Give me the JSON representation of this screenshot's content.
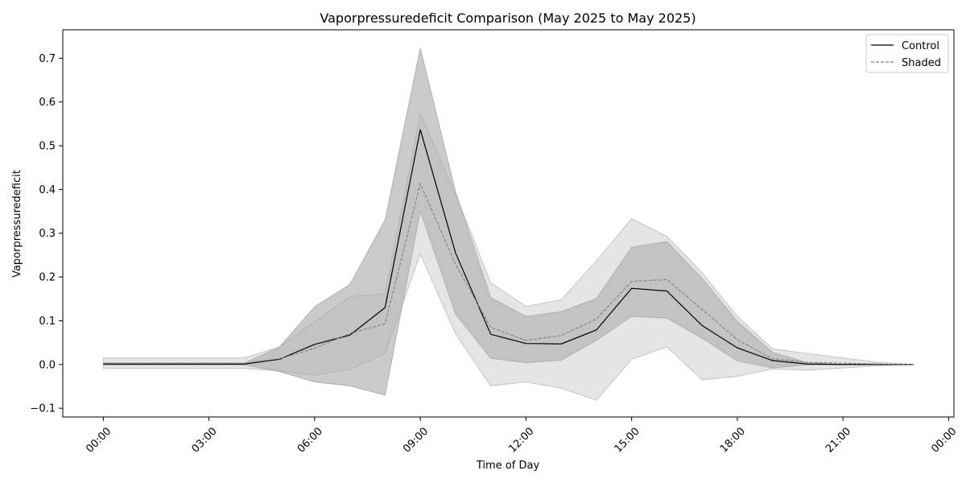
{
  "chart_data": {
    "type": "line",
    "title": "Vaporpressuredeficit Comparison (May 2025 to May 2025)",
    "xlabel": "Time of Day",
    "ylabel": "Vaporpressuredeficit",
    "x_unit": "hour",
    "xlim": [
      -1.15,
      24.15
    ],
    "ylim": [
      -0.12,
      0.765
    ],
    "x_ticks": [
      0,
      3,
      6,
      9,
      12,
      15,
      18,
      21,
      24
    ],
    "x_tick_labels": [
      "00:00",
      "03:00",
      "06:00",
      "09:00",
      "12:00",
      "15:00",
      "18:00",
      "21:00",
      "00:00"
    ],
    "y_ticks": [
      -0.1,
      0.0,
      0.1,
      0.2,
      0.3,
      0.4,
      0.5,
      0.6,
      0.7
    ],
    "y_tick_labels": [
      "−0.1",
      "0.0",
      "0.1",
      "0.2",
      "0.3",
      "0.4",
      "0.5",
      "0.6",
      "0.7"
    ],
    "grid": false,
    "legend_position": "top-right",
    "x": [
      0,
      1,
      2,
      3,
      4,
      5,
      6,
      7,
      8,
      9,
      10,
      11,
      12,
      13,
      14,
      15,
      16,
      17,
      18,
      19,
      20,
      21,
      22,
      23
    ],
    "series": [
      {
        "name": "Control",
        "style": "solid",
        "color": "#000000",
        "values": [
          0.001,
          0.001,
          0.001,
          0.001,
          0.001,
          0.012,
          0.046,
          0.067,
          0.13,
          0.537,
          0.255,
          0.069,
          0.048,
          0.047,
          0.079,
          0.174,
          0.168,
          0.089,
          0.038,
          0.009,
          0.001,
          0.0,
          0.0,
          0.0
        ],
        "band_lower": [
          -0.001,
          -0.001,
          -0.001,
          -0.001,
          -0.001,
          -0.016,
          -0.04,
          -0.049,
          -0.07,
          0.35,
          0.115,
          0.014,
          0.004,
          0.01,
          0.055,
          0.11,
          0.106,
          0.06,
          0.008,
          -0.008,
          -0.001,
          0.0,
          0.0,
          0.0
        ],
        "band_upper": [
          0.003,
          0.003,
          0.003,
          0.003,
          0.003,
          0.04,
          0.132,
          0.183,
          0.33,
          0.723,
          0.395,
          0.153,
          0.11,
          0.121,
          0.151,
          0.268,
          0.281,
          0.197,
          0.099,
          0.028,
          0.004,
          0.0,
          0.0,
          0.0
        ]
      },
      {
        "name": "Shaded",
        "style": "dashed",
        "color": "#808080",
        "values": [
          0.003,
          0.003,
          0.003,
          0.003,
          0.003,
          0.013,
          0.037,
          0.071,
          0.093,
          0.413,
          0.229,
          0.085,
          0.055,
          0.066,
          0.104,
          0.19,
          0.194,
          0.126,
          0.057,
          0.013,
          0.005,
          0.003,
          0.001,
          0.0
        ],
        "band_lower": [
          -0.009,
          -0.009,
          -0.009,
          -0.009,
          -0.009,
          -0.015,
          -0.024,
          -0.012,
          0.025,
          0.252,
          0.07,
          -0.049,
          -0.04,
          -0.054,
          -0.082,
          0.012,
          0.04,
          -0.035,
          -0.027,
          -0.01,
          -0.013,
          -0.008,
          -0.003,
          0.0
        ],
        "band_upper": [
          0.015,
          0.015,
          0.015,
          0.015,
          0.015,
          0.04,
          0.098,
          0.155,
          0.162,
          0.573,
          0.39,
          0.187,
          0.133,
          0.148,
          0.237,
          0.333,
          0.293,
          0.21,
          0.11,
          0.036,
          0.025,
          0.015,
          0.005,
          0.0
        ]
      }
    ]
  }
}
